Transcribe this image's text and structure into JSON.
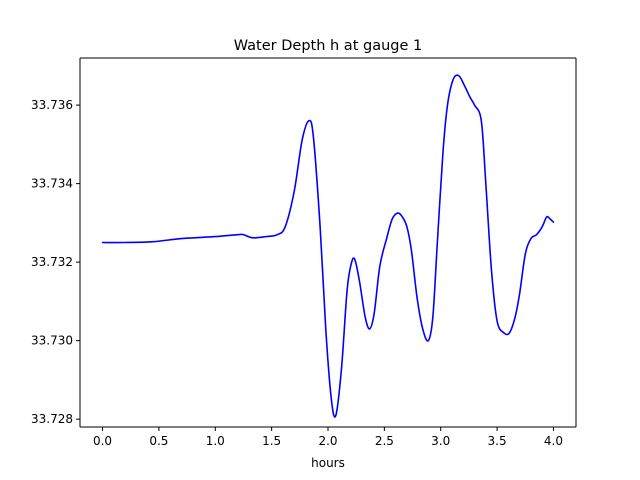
{
  "chart_data": {
    "type": "line",
    "title": "Water Depth h at gauge 1",
    "xlabel": "hours",
    "ylabel": "",
    "xlim": [
      -0.2,
      4.2
    ],
    "ylim": [
      33.7278,
      33.7372
    ],
    "xticks": [
      0.0,
      0.5,
      1.0,
      1.5,
      2.0,
      2.5,
      3.0,
      3.5,
      4.0
    ],
    "xtick_labels": [
      "0.0",
      "0.5",
      "1.0",
      "1.5",
      "2.0",
      "2.5",
      "3.0",
      "3.5",
      "4.0"
    ],
    "yticks": [
      33.728,
      33.73,
      33.732,
      33.734,
      33.736
    ],
    "ytick_labels": [
      "33.728",
      "33.730",
      "33.732",
      "33.734",
      "33.736"
    ],
    "grid": false,
    "series": [
      {
        "color": "#0000ff",
        "x": [
          0.0,
          0.2,
          0.45,
          0.7,
          1.0,
          1.2,
          1.25,
          1.33,
          1.45,
          1.55,
          1.62,
          1.7,
          1.77,
          1.83,
          1.87,
          1.93,
          1.98,
          2.03,
          2.07,
          2.12,
          2.17,
          2.21,
          2.24,
          2.28,
          2.33,
          2.37,
          2.41,
          2.46,
          2.52,
          2.57,
          2.62,
          2.66,
          2.7,
          2.74,
          2.79,
          2.84,
          2.89,
          2.93,
          2.97,
          3.02,
          3.06,
          3.11,
          3.16,
          3.21,
          3.26,
          3.3,
          3.36,
          3.4,
          3.45,
          3.5,
          3.56,
          3.61,
          3.66,
          3.7,
          3.75,
          3.8,
          3.85,
          3.9,
          3.94,
          3.97,
          4.0
        ],
        "y": [
          33.7325,
          33.7325,
          33.73252,
          33.7326,
          33.73265,
          33.7327,
          33.7327,
          33.73262,
          33.73265,
          33.7327,
          33.7329,
          33.7338,
          33.7351,
          33.7356,
          33.7352,
          33.7329,
          33.7303,
          33.7285,
          33.7281,
          33.7293,
          33.7313,
          33.732,
          33.73205,
          33.7315,
          33.7306,
          33.7303,
          33.7307,
          33.7319,
          33.7326,
          33.7331,
          33.73325,
          33.73315,
          33.7329,
          33.7323,
          33.7311,
          33.7303,
          33.73,
          33.7306,
          33.7325,
          33.7348,
          33.736,
          33.73665,
          33.73675,
          33.7365,
          33.7362,
          33.736,
          33.7356,
          33.734,
          33.7318,
          33.7305,
          33.7302,
          33.7302,
          33.7306,
          33.7312,
          33.7322,
          33.7326,
          33.7327,
          33.7329,
          33.73315,
          33.7331,
          33.73302
        ]
      }
    ]
  }
}
